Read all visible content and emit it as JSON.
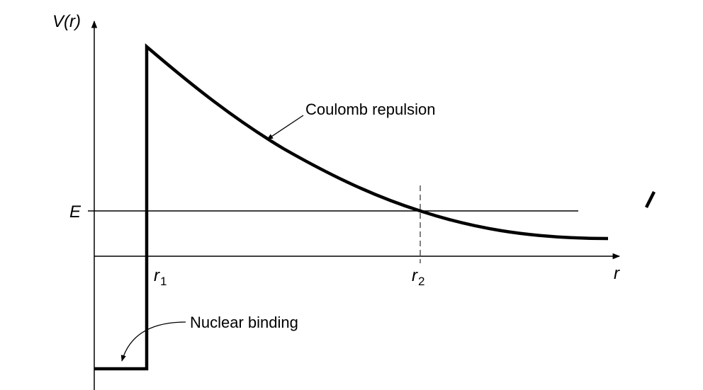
{
  "diagram": {
    "y_axis_label": "V(r)",
    "x_axis_label": "r",
    "energy_label": "E",
    "r1_label": "r",
    "r1_subscript": "1",
    "r2_label": "r",
    "r2_subscript": "2",
    "coulomb_label": "Coulomb repulsion",
    "nuclear_label": "Nuclear binding"
  },
  "colors": {
    "ink": "#000000",
    "background": "#ffffff"
  }
}
